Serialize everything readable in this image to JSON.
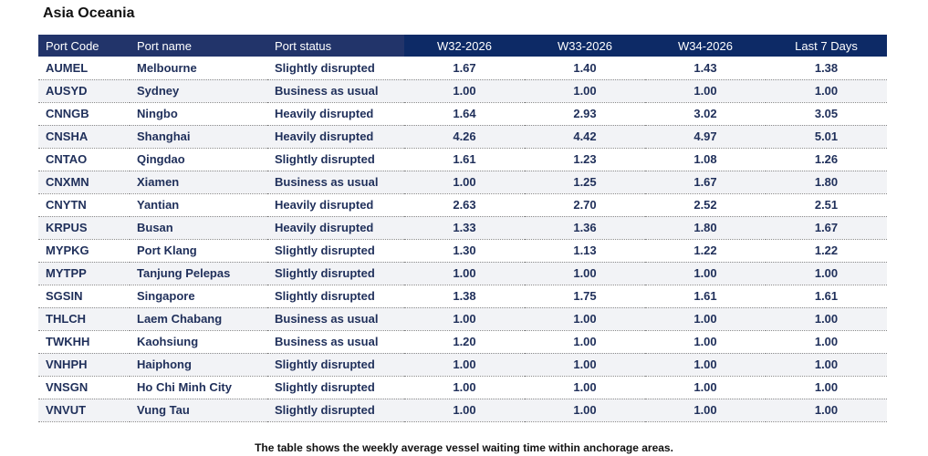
{
  "region": "Asia Oceania",
  "columns": {
    "port_code": "Port Code",
    "port_name": "Port name",
    "port_status": "Port status",
    "w32": "W32-2026",
    "w33": "W33-2026",
    "w34": "W34-2026",
    "last7": "Last 7 Days"
  },
  "rows": [
    {
      "code": "AUMEL",
      "name": "Melbourne",
      "status": "Slightly disrupted",
      "w32": "1.67",
      "w33": "1.40",
      "w34": "1.43",
      "last7": "1.38"
    },
    {
      "code": "AUSYD",
      "name": "Sydney",
      "status": "Business as usual",
      "w32": "1.00",
      "w33": "1.00",
      "w34": "1.00",
      "last7": "1.00"
    },
    {
      "code": "CNNGB",
      "name": "Ningbo",
      "status": "Heavily disrupted",
      "w32": "1.64",
      "w33": "2.93",
      "w34": "3.02",
      "last7": "3.05"
    },
    {
      "code": "CNSHA",
      "name": "Shanghai",
      "status": "Heavily disrupted",
      "w32": "4.26",
      "w33": "4.42",
      "w34": "4.97",
      "last7": "5.01"
    },
    {
      "code": "CNTAO",
      "name": "Qingdao",
      "status": "Slightly disrupted",
      "w32": "1.61",
      "w33": "1.23",
      "w34": "1.08",
      "last7": "1.26"
    },
    {
      "code": "CNXMN",
      "name": "Xiamen",
      "status": "Business as usual",
      "w32": "1.00",
      "w33": "1.25",
      "w34": "1.67",
      "last7": "1.80"
    },
    {
      "code": "CNYTN",
      "name": "Yantian",
      "status": "Heavily disrupted",
      "w32": "2.63",
      "w33": "2.70",
      "w34": "2.52",
      "last7": "2.51"
    },
    {
      "code": "KRPUS",
      "name": "Busan",
      "status": "Heavily disrupted",
      "w32": "1.33",
      "w33": "1.36",
      "w34": "1.80",
      "last7": "1.67"
    },
    {
      "code": "MYPKG",
      "name": "Port Klang",
      "status": "Slightly disrupted",
      "w32": "1.30",
      "w33": "1.13",
      "w34": "1.22",
      "last7": "1.22"
    },
    {
      "code": "MYTPP",
      "name": "Tanjung Pelepas",
      "status": "Slightly disrupted",
      "w32": "1.00",
      "w33": "1.00",
      "w34": "1.00",
      "last7": "1.00"
    },
    {
      "code": "SGSIN",
      "name": "Singapore",
      "status": "Slightly disrupted",
      "w32": "1.38",
      "w33": "1.75",
      "w34": "1.61",
      "last7": "1.61"
    },
    {
      "code": "THLCH",
      "name": "Laem Chabang",
      "status": "Business as usual",
      "w32": "1.00",
      "w33": "1.00",
      "w34": "1.00",
      "last7": "1.00"
    },
    {
      "code": "TWKHH",
      "name": "Kaohsiung",
      "status": "Business as usual",
      "w32": "1.20",
      "w33": "1.00",
      "w34": "1.00",
      "last7": "1.00"
    },
    {
      "code": "VNHPH",
      "name": "Haiphong",
      "status": "Slightly disrupted",
      "w32": "1.00",
      "w33": "1.00",
      "w34": "1.00",
      "last7": "1.00"
    },
    {
      "code": "VNSGN",
      "name": "Ho Chi Minh City",
      "status": "Slightly disrupted",
      "w32": "1.00",
      "w33": "1.00",
      "w34": "1.00",
      "last7": "1.00"
    },
    {
      "code": "VNVUT",
      "name": "Vung Tau",
      "status": "Slightly disrupted",
      "w32": "1.00",
      "w33": "1.00",
      "w34": "1.00",
      "last7": "1.00"
    }
  ],
  "caption": "The table shows the weekly average vessel waiting time within anchorage areas.",
  "colors": {
    "header_bg": "#22346a",
    "header_week_bg": "#0d2a66",
    "header_text": "#ffffff",
    "cell_text": "#1f2f5a"
  }
}
